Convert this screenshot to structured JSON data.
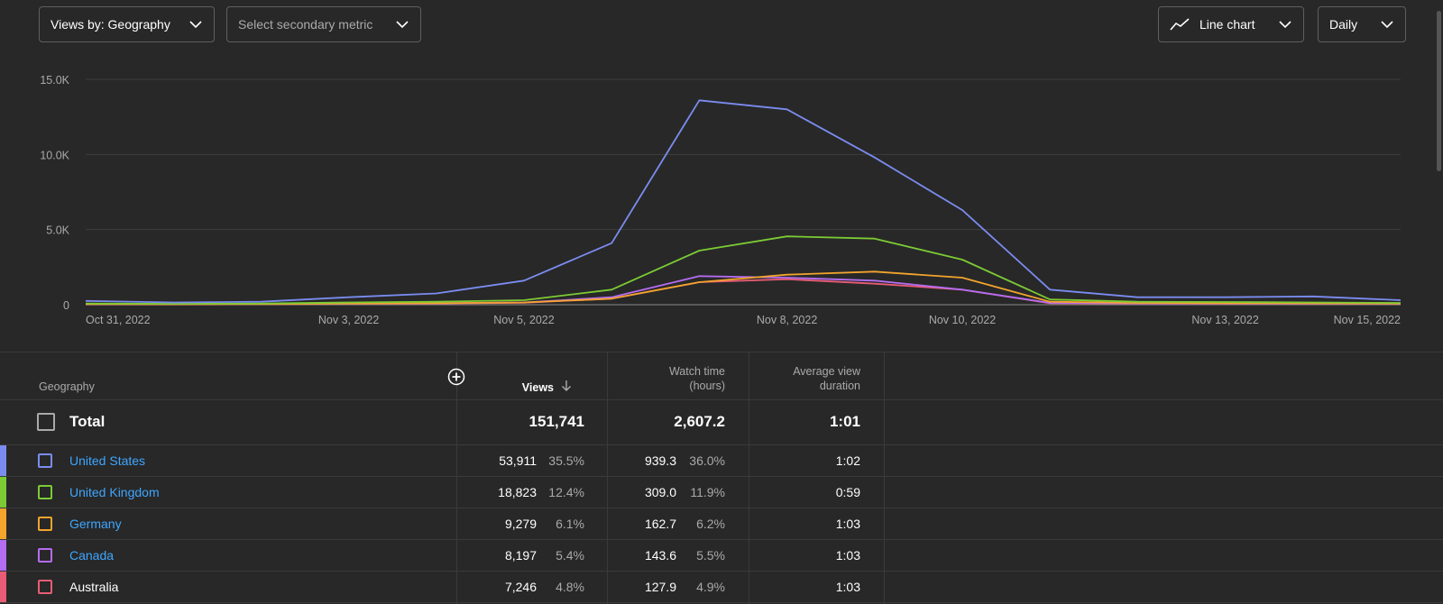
{
  "controls": {
    "metric_label": "Views by: Geography",
    "secondary_placeholder": "Select secondary metric",
    "chart_type_label": "Line chart",
    "interval_label": "Daily"
  },
  "chart_data": {
    "type": "line",
    "x": [
      "Oct 31, 2022",
      "Nov 1, 2022",
      "Nov 2, 2022",
      "Nov 3, 2022",
      "Nov 4, 2022",
      "Nov 5, 2022",
      "Nov 6, 2022",
      "Nov 7, 2022",
      "Nov 8, 2022",
      "Nov 9, 2022",
      "Nov 10, 2022",
      "Nov 11, 2022",
      "Nov 12, 2022",
      "Nov 13, 2022",
      "Nov 14, 2022",
      "Nov 15, 2022"
    ],
    "xticks": [
      {
        "label": "Oct 31, 2022",
        "index": 0
      },
      {
        "label": "Nov 3, 2022",
        "index": 3
      },
      {
        "label": "Nov 5, 2022",
        "index": 5
      },
      {
        "label": "Nov 8, 2022",
        "index": 8
      },
      {
        "label": "Nov 10, 2022",
        "index": 10
      },
      {
        "label": "Nov 13, 2022",
        "index": 13
      },
      {
        "label": "Nov 15, 2022",
        "index": 15
      }
    ],
    "yticks": [
      "0",
      "5.0K",
      "10.0K",
      "15.0K"
    ],
    "ytick_values": [
      0,
      5000,
      10000,
      15000
    ],
    "ylim": [
      0,
      15000
    ],
    "grid": true,
    "series": [
      {
        "name": "United States",
        "color": "#7b8cf0",
        "values": [
          250,
          150,
          200,
          500,
          750,
          1600,
          4100,
          13600,
          13000,
          9800,
          6300,
          1000,
          500,
          500,
          550,
          300
        ]
      },
      {
        "name": "United Kingdom",
        "color": "#7ccb34",
        "values": [
          80,
          60,
          80,
          150,
          200,
          300,
          1000,
          3600,
          4550,
          4400,
          3000,
          350,
          200,
          180,
          150,
          120
        ]
      },
      {
        "name": "Germany",
        "color": "#f2a42d",
        "values": [
          40,
          30,
          40,
          80,
          100,
          150,
          400,
          1500,
          2000,
          2200,
          1800,
          200,
          120,
          100,
          90,
          80
        ]
      },
      {
        "name": "Canada",
        "color": "#b46cf0",
        "values": [
          30,
          30,
          40,
          70,
          100,
          150,
          500,
          1900,
          1800,
          1600,
          1000,
          120,
          100,
          90,
          80,
          70
        ]
      },
      {
        "name": "Australia",
        "color": "#e85d75",
        "values": [
          20,
          20,
          30,
          60,
          80,
          130,
          400,
          1500,
          1700,
          1400,
          1000,
          100,
          80,
          70,
          60,
          60
        ]
      }
    ]
  },
  "table": {
    "headers": {
      "geography": "Geography",
      "views": "Views",
      "watch_time_line1": "Watch time",
      "watch_time_line2": "(hours)",
      "avg_line1": "Average view",
      "avg_line2": "duration"
    },
    "total": {
      "label": "Total",
      "views": "151,741",
      "watch_time": "2,607.2",
      "avg_duration": "1:01"
    },
    "rows": [
      {
        "country": "United States",
        "color": "#7b8cf0",
        "views": "53,911",
        "views_pct": "35.5%",
        "watch": "939.3",
        "watch_pct": "36.0%",
        "avg": "1:02",
        "link": true
      },
      {
        "country": "United Kingdom",
        "color": "#7ccb34",
        "views": "18,823",
        "views_pct": "12.4%",
        "watch": "309.0",
        "watch_pct": "11.9%",
        "avg": "0:59",
        "link": true
      },
      {
        "country": "Germany",
        "color": "#f2a42d",
        "views": "9,279",
        "views_pct": "6.1%",
        "watch": "162.7",
        "watch_pct": "6.2%",
        "avg": "1:03",
        "link": true
      },
      {
        "country": "Canada",
        "color": "#b46cf0",
        "views": "8,197",
        "views_pct": "5.4%",
        "watch": "143.6",
        "watch_pct": "5.5%",
        "avg": "1:03",
        "link": true
      },
      {
        "country": "Australia",
        "color": "#e85d75",
        "views": "7,246",
        "views_pct": "4.8%",
        "watch": "127.9",
        "watch_pct": "4.9%",
        "avg": "1:03",
        "link": false
      }
    ]
  }
}
